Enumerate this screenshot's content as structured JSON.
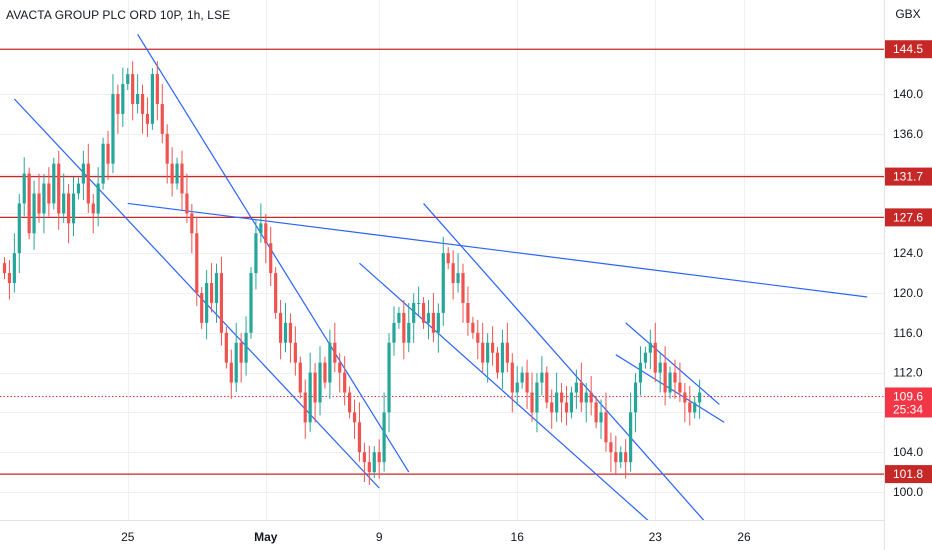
{
  "title": "AVACTA GROUP PLC ORD 10P, 1h, LSE",
  "colors": {
    "bullish": "#26a69a",
    "bearish": "#ef5350",
    "hline": "#c62828",
    "trendline": "#2962ff",
    "price_badge": "#f23645",
    "grid": "#eef0f3",
    "axis_text": "#131722"
  },
  "chart_data": {
    "type": "candlestick",
    "currency_label": "GBX",
    "ylim": [
      98,
      150
    ],
    "grid": true,
    "y_ticks": [
      100.0,
      104.0,
      108.0,
      112.0,
      116.0,
      120.0,
      124.0,
      128.0,
      132.0,
      136.0,
      140.0
    ],
    "y_tick_labels": [
      "100.0",
      "104.0",
      "",
      "112.0",
      "116.0",
      "120.0",
      "124.0",
      "127.6",
      "",
      "136.0",
      "140.0"
    ],
    "x_ticks": [
      {
        "label": "25",
        "bar": 25,
        "bold": false
      },
      {
        "label": "May",
        "bar": 53,
        "bold": true
      },
      {
        "label": "9",
        "bar": 76,
        "bold": false
      },
      {
        "label": "16",
        "bar": 104,
        "bold": false
      },
      {
        "label": "23",
        "bar": 132,
        "bold": false
      },
      {
        "label": "26",
        "bar": 150,
        "bold": false
      }
    ],
    "horizontal_levels": [
      {
        "value": 144.5,
        "label": "144.5"
      },
      {
        "value": 131.7,
        "label": "131.7"
      },
      {
        "value": 127.6,
        "label": "127.6"
      },
      {
        "value": 101.8,
        "label": "101.8"
      }
    ],
    "current_price": {
      "value": 109.6,
      "label": "109.6",
      "countdown": "25:34"
    },
    "candles_close": [
      122,
      121,
      124,
      129,
      132,
      126,
      130,
      128,
      131,
      129,
      133,
      128,
      130,
      127,
      130,
      131,
      133,
      129,
      128,
      131,
      135,
      133,
      140,
      138,
      141,
      142,
      139,
      140,
      138,
      137,
      142,
      139,
      136,
      133,
      131,
      133,
      130,
      128,
      126,
      120,
      117,
      121,
      119,
      122,
      116,
      113,
      111,
      115,
      113,
      116,
      122,
      126,
      127,
      125,
      122,
      118,
      115,
      117,
      115,
      113,
      110,
      107,
      112,
      109,
      113,
      111,
      115,
      113,
      112,
      110,
      108,
      107,
      104,
      103,
      102,
      104,
      103,
      108,
      115,
      117,
      118,
      115,
      117,
      119,
      119,
      117,
      118,
      116,
      118,
      124,
      123,
      121,
      122,
      119,
      117,
      116,
      115,
      113,
      115,
      114,
      112,
      115,
      113,
      110,
      111,
      112,
      110,
      108,
      111,
      112,
      109,
      108,
      110,
      109,
      108,
      110,
      111,
      109,
      110,
      109,
      107,
      108,
      105,
      104,
      103,
      104,
      103,
      108,
      111,
      113,
      114,
      115,
      112,
      113,
      110,
      112,
      111,
      110,
      109,
      108,
      109,
      110
    ],
    "trendlines": [
      {
        "from": {
          "bar": 2,
          "price": 139.5
        },
        "to": {
          "bar": 76,
          "price": 100.4
        }
      },
      {
        "from": {
          "bar": 27,
          "price": 146.0
        },
        "to": {
          "bar": 82,
          "price": 102.0
        }
      },
      {
        "from": {
          "bar": 25,
          "price": 129.0
        },
        "to": {
          "bar": 175,
          "price": 119.6
        }
      },
      {
        "from": {
          "bar": 72,
          "price": 123.0
        },
        "to": {
          "bar": 132,
          "price": 96.5
        }
      },
      {
        "from": {
          "bar": 85,
          "price": 129.0
        },
        "to": {
          "bar": 143,
          "price": 96.5
        }
      },
      {
        "from": {
          "bar": 124,
          "price": 113.8
        },
        "to": {
          "bar": 146,
          "price": 107.0
        }
      },
      {
        "from": {
          "bar": 126,
          "price": 117.0
        },
        "to": {
          "bar": 145,
          "price": 108.8
        }
      }
    ]
  }
}
